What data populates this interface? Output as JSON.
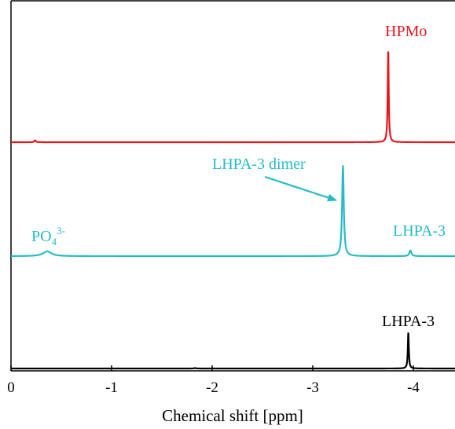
{
  "chart_data": {
    "type": "line",
    "title": "",
    "xlabel": "Chemical shift [ppm]",
    "ylabel": "",
    "xlim": [
      0,
      -4.45
    ],
    "x_reversed": true,
    "ticks": [
      {
        "value": 0,
        "label": "0"
      },
      {
        "value": -1,
        "label": "-1"
      },
      {
        "value": -2,
        "label": "-2"
      },
      {
        "value": -3,
        "label": "-3"
      },
      {
        "value": -4,
        "label": "-4"
      }
    ],
    "grid": false,
    "series": [
      {
        "name": "HPMo",
        "color": "#e8141c",
        "baseline": 0.72,
        "peaks": [
          {
            "x": -0.24,
            "height": 0.02,
            "width": 0.008
          },
          {
            "x": -3.75,
            "height": 0.96,
            "width": 0.006
          }
        ]
      },
      {
        "name": "LHPA-3",
        "color": "#25bcc4",
        "baseline": 0.39,
        "peaks": [
          {
            "x": -0.36,
            "height": 0.05,
            "width": 0.05
          },
          {
            "x": -3.3,
            "height": 0.95,
            "width": 0.01
          },
          {
            "x": -3.97,
            "height": 0.06,
            "width": 0.012
          }
        ]
      },
      {
        "name": "LHPA-3",
        "color": "#000000",
        "baseline": 0.0,
        "peaks": [
          {
            "x": -1.83,
            "height": 0.004,
            "width": 0.01
          },
          {
            "x": -3.95,
            "height": 0.32,
            "width": 0.006
          }
        ]
      }
    ],
    "annotations": [
      {
        "text": "HPMo",
        "color": "#e8141c"
      },
      {
        "text": "LHPA-3 dimer",
        "color": "#25bcc4"
      },
      {
        "text": "PO",
        "sub": "4",
        "sup": "3-",
        "color": "#25bcc4"
      },
      {
        "text": "LHPA-3",
        "color": "#25bcc4"
      },
      {
        "text": "LHPA-3",
        "color": "#000000"
      }
    ]
  }
}
